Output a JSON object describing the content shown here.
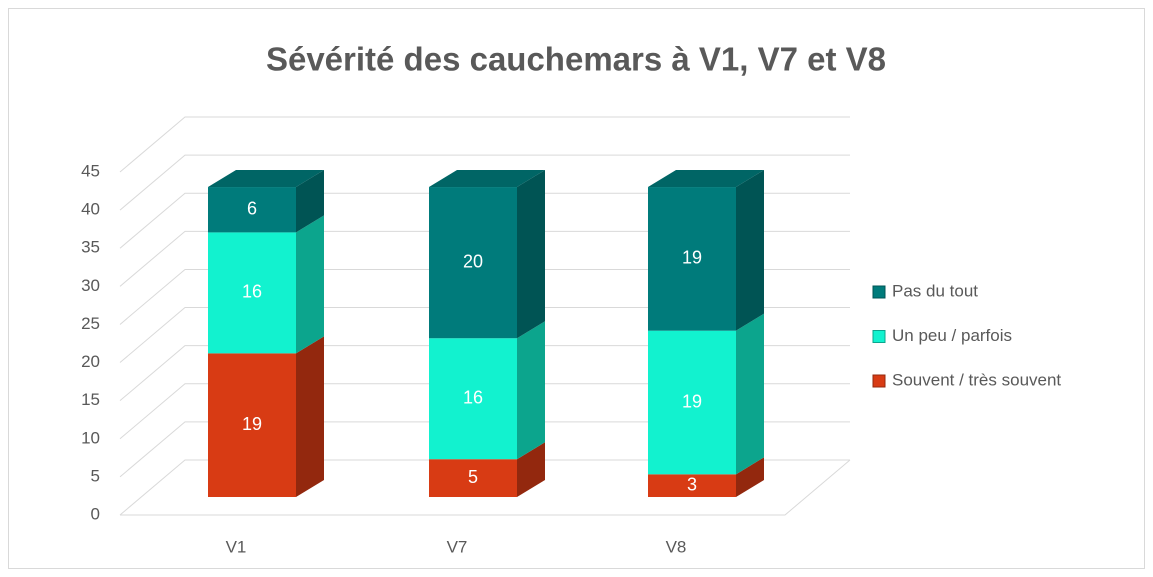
{
  "chart_data": {
    "type": "bar3d_stacked",
    "title": "Sévérité des cauchemars à V1, V7 et V8",
    "categories": [
      "V1",
      "V7",
      "V8"
    ],
    "series": [
      {
        "name": "Souvent / très souvent",
        "color": "#d83b14",
        "values": [
          19,
          5,
          3
        ]
      },
      {
        "name": "Un peu / parfois",
        "color": "#12f2cf",
        "values": [
          16,
          16,
          19
        ]
      },
      {
        "name": "Pas du tout",
        "color": "#007b7b",
        "values": [
          6,
          20,
          19
        ]
      }
    ],
    "ylim": [
      0,
      45
    ],
    "yticks": [
      0,
      5,
      10,
      15,
      20,
      25,
      30,
      35,
      40,
      45
    ],
    "grid": true,
    "legend": "right"
  }
}
